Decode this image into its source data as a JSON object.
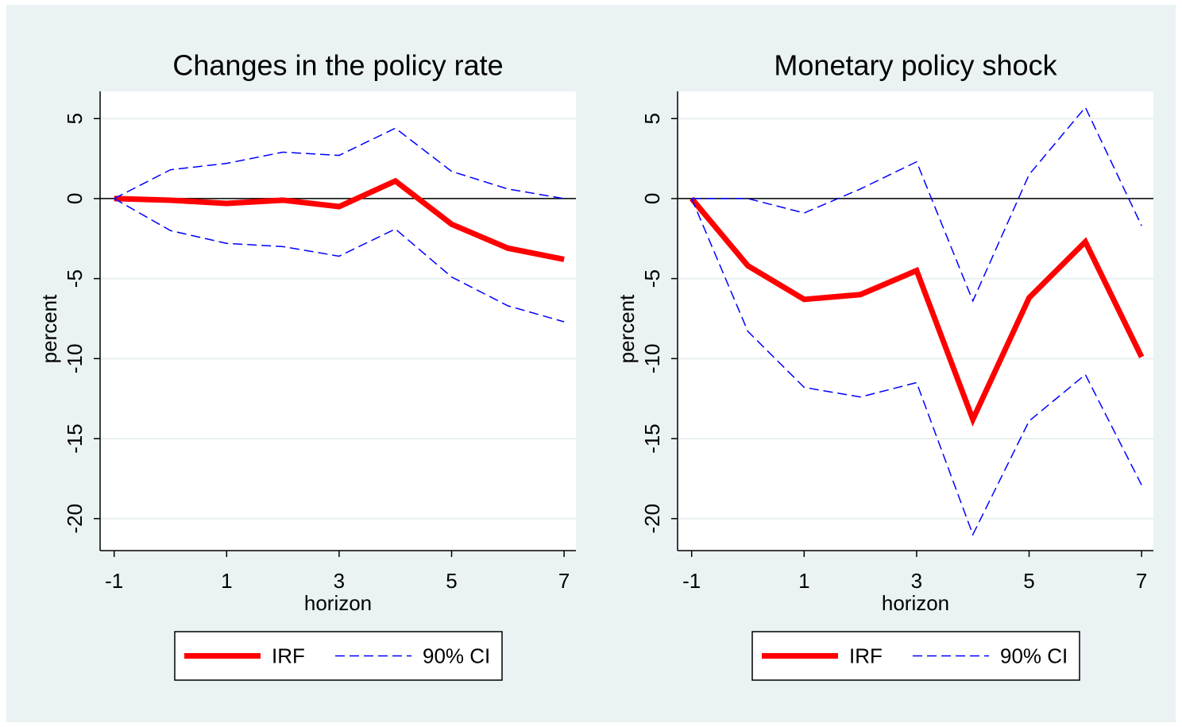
{
  "chart_data": [
    {
      "type": "line",
      "title": "Changes in the policy rate",
      "xlabel": "horizon",
      "ylabel": "percent",
      "x": [
        -1,
        0,
        1,
        2,
        3,
        4,
        5,
        6,
        7
      ],
      "series": [
        {
          "name": "IRF",
          "color": "#ff0000",
          "values": [
            0,
            -0.1,
            -0.3,
            -0.1,
            -0.5,
            1.1,
            -1.6,
            -3.1,
            -3.8
          ]
        },
        {
          "name": "90% CI",
          "color": "#0000ff",
          "values": [
            0,
            1.8,
            2.2,
            2.9,
            2.7,
            4.4,
            1.7,
            0.6,
            0.0
          ],
          "lower": [
            0,
            -2.0,
            -2.8,
            -3.0,
            -3.6,
            -1.9,
            -4.9,
            -6.7,
            -7.7
          ]
        }
      ],
      "xlim": [
        -1.25,
        7.21
      ],
      "xticks": [
        -1,
        1,
        3,
        5,
        7
      ],
      "ylim": [
        -22.0,
        6.7
      ],
      "yticks": [
        5,
        0,
        -5,
        -10,
        -15,
        -20
      ],
      "reference_line": 0,
      "grid": true
    },
    {
      "type": "line",
      "title": "Monetary policy shock",
      "xlabel": "horizon",
      "ylabel": "percent",
      "x": [
        -1,
        0,
        1,
        2,
        3,
        4,
        5,
        6,
        7
      ],
      "series": [
        {
          "name": "IRF",
          "color": "#ff0000",
          "values": [
            0,
            -4.2,
            -6.3,
            -6.0,
            -4.5,
            -13.8,
            -6.2,
            -2.7,
            -9.9
          ]
        },
        {
          "name": "90% CI",
          "color": "#0000ff",
          "values": [
            0,
            0,
            -0.9,
            0.6,
            2.3,
            -6.4,
            1.5,
            5.7,
            -1.7
          ],
          "lower": [
            0,
            -8.3,
            -11.8,
            -12.4,
            -11.5,
            -21.0,
            -13.9,
            -11.0,
            -17.9
          ]
        }
      ],
      "xlim": [
        -1.25,
        7.21
      ],
      "xticks": [
        -1,
        1,
        3,
        5,
        7
      ],
      "ylim": [
        -22.0,
        6.7
      ],
      "yticks": [
        5,
        0,
        -5,
        -10,
        -15,
        -20
      ],
      "reference_line": 0,
      "grid": true
    }
  ]
}
